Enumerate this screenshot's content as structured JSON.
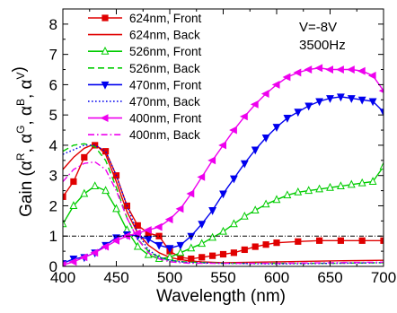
{
  "chart_data": {
    "type": "line",
    "xlabel": "Wavelength (nm)",
    "ylabel": {
      "prefix": "Gain (",
      "parts": [
        {
          "base": "α",
          "sup": "R"
        },
        {
          "base": "α",
          "sup": "G"
        },
        {
          "base": "α",
          "sup": "B"
        },
        {
          "base": "α",
          "sup": "V"
        }
      ],
      "suffix": ")"
    },
    "xlim": [
      400,
      700
    ],
    "ylim": [
      0,
      8.5
    ],
    "xticks": [
      400,
      450,
      500,
      550,
      600,
      650,
      700
    ],
    "yticks": [
      0,
      1,
      2,
      3,
      4,
      5,
      6,
      7,
      8
    ],
    "grid": false,
    "legend_position": "top-left",
    "annotations": [
      "V=-8V",
      "3500Hz"
    ],
    "reference_line": {
      "y": 1,
      "style": "dash-dot",
      "color": "#000000"
    },
    "series": [
      {
        "name": "624nm, Front",
        "color": "#e00000",
        "dash": "solid",
        "marker": "square",
        "x": [
          400,
          410,
          420,
          430,
          440,
          450,
          460,
          470,
          480,
          490,
          500,
          510,
          520,
          530,
          540,
          550,
          560,
          570,
          580,
          590,
          600,
          620,
          640,
          660,
          680,
          700
        ],
        "y": [
          2.3,
          2.8,
          3.6,
          4.0,
          3.8,
          3.0,
          2.0,
          1.35,
          1.1,
          1.0,
          0.5,
          0.3,
          0.25,
          0.3,
          0.35,
          0.4,
          0.45,
          0.55,
          0.65,
          0.72,
          0.78,
          0.82,
          0.85,
          0.85,
          0.85,
          0.85
        ]
      },
      {
        "name": "624nm, Back",
        "color": "#e00000",
        "dash": "solid",
        "marker": "none",
        "x": [
          400,
          410,
          420,
          430,
          440,
          450,
          460,
          470,
          480,
          490,
          500,
          510,
          520,
          530,
          550,
          600,
          650,
          700
        ],
        "y": [
          3.2,
          3.6,
          3.9,
          4.05,
          3.7,
          2.8,
          1.8,
          1.1,
          0.7,
          0.45,
          0.3,
          0.22,
          0.18,
          0.15,
          0.12,
          0.15,
          0.18,
          0.2
        ]
      },
      {
        "name": "526nm, Front",
        "color": "#00cc00",
        "dash": "solid",
        "marker": "triangle-up",
        "x": [
          400,
          410,
          420,
          430,
          440,
          450,
          460,
          470,
          480,
          490,
          500,
          510,
          520,
          530,
          540,
          550,
          560,
          570,
          580,
          590,
          600,
          610,
          620,
          630,
          640,
          650,
          660,
          670,
          680,
          690,
          700
        ],
        "y": [
          1.4,
          2.0,
          2.4,
          2.65,
          2.5,
          1.9,
          1.2,
          0.65,
          0.38,
          0.25,
          0.3,
          0.45,
          0.6,
          0.75,
          0.95,
          1.15,
          1.4,
          1.65,
          1.85,
          2.05,
          2.2,
          2.35,
          2.45,
          2.5,
          2.55,
          2.6,
          2.65,
          2.7,
          2.75,
          2.8,
          3.3
        ]
      },
      {
        "name": "526nm, Back",
        "color": "#00cc00",
        "dash": "dashed",
        "marker": "none",
        "x": [
          400,
          410,
          420,
          430,
          440,
          450,
          460,
          470,
          480,
          490,
          500,
          510,
          520,
          550,
          600,
          650,
          700
        ],
        "y": [
          3.8,
          4.0,
          4.05,
          3.95,
          3.5,
          2.6,
          1.6,
          0.9,
          0.5,
          0.3,
          0.2,
          0.16,
          0.14,
          0.1,
          0.1,
          0.1,
          0.12
        ]
      },
      {
        "name": "470nm, Front",
        "color": "#0000ee",
        "dash": "solid",
        "marker": "triangle-down",
        "x": [
          400,
          410,
          420,
          430,
          440,
          450,
          460,
          470,
          480,
          490,
          500,
          510,
          520,
          530,
          540,
          550,
          560,
          570,
          580,
          590,
          600,
          610,
          620,
          630,
          640,
          650,
          660,
          670,
          680,
          690,
          700
        ],
        "y": [
          0.1,
          0.25,
          0.3,
          0.45,
          0.7,
          0.95,
          1.05,
          1.0,
          0.9,
          0.7,
          0.6,
          0.7,
          1.0,
          1.4,
          1.85,
          2.4,
          2.9,
          3.4,
          3.85,
          4.25,
          4.6,
          4.9,
          5.1,
          5.3,
          5.45,
          5.55,
          5.6,
          5.55,
          5.5,
          5.45,
          5.1
        ]
      },
      {
        "name": "470nm, Back",
        "color": "#0000ee",
        "dash": "dotted",
        "marker": "none",
        "x": [
          400,
          410,
          420,
          430,
          440,
          450,
          460,
          470,
          480,
          490,
          500,
          510,
          520,
          550,
          600,
          650,
          700
        ],
        "y": [
          3.7,
          3.85,
          4.0,
          4.0,
          3.8,
          3.0,
          2.0,
          1.1,
          0.55,
          0.3,
          0.2,
          0.15,
          0.12,
          0.1,
          0.08,
          0.1,
          0.12
        ]
      },
      {
        "name": "400nm, Front",
        "color": "#ee00ee",
        "dash": "solid",
        "marker": "triangle-left",
        "x": [
          400,
          410,
          420,
          430,
          440,
          450,
          460,
          470,
          480,
          490,
          500,
          510,
          520,
          530,
          540,
          550,
          560,
          570,
          580,
          590,
          600,
          610,
          620,
          630,
          640,
          650,
          660,
          670,
          680,
          690,
          700
        ],
        "y": [
          0.05,
          0.15,
          0.3,
          0.45,
          0.65,
          0.85,
          1.0,
          1.1,
          1.2,
          1.3,
          1.55,
          1.9,
          2.4,
          2.95,
          3.5,
          4.0,
          4.5,
          4.95,
          5.35,
          5.7,
          6.0,
          6.25,
          6.4,
          6.5,
          6.55,
          6.5,
          6.5,
          6.5,
          6.45,
          6.3,
          5.8
        ]
      },
      {
        "name": "400nm, Back",
        "color": "#ee00ee",
        "dash": "dashdot",
        "marker": "none",
        "x": [
          400,
          410,
          420,
          430,
          440,
          450,
          460,
          470,
          480,
          490,
          500,
          510,
          520,
          550,
          600,
          650,
          700
        ],
        "y": [
          2.8,
          3.2,
          3.4,
          3.45,
          3.2,
          2.5,
          1.6,
          0.9,
          0.45,
          0.25,
          0.15,
          0.12,
          0.1,
          0.1,
          0.1,
          0.12,
          0.14
        ]
      }
    ]
  }
}
